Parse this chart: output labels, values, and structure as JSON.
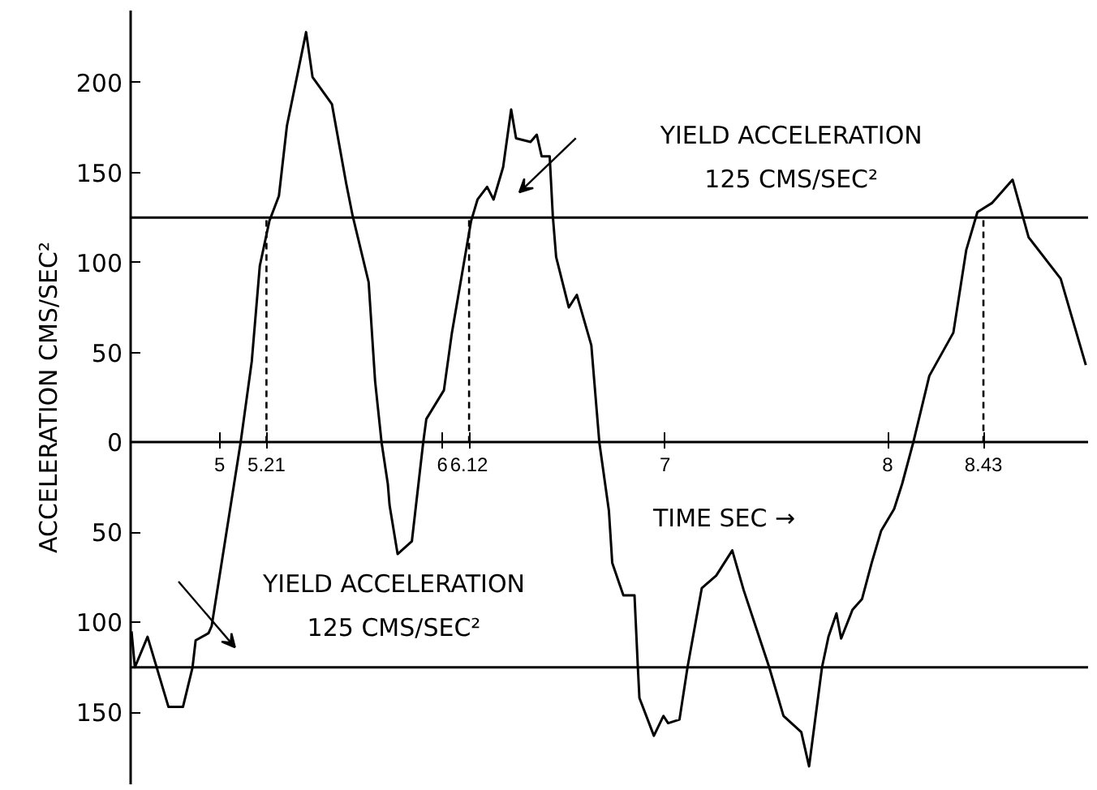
{
  "chart_data": {
    "type": "line",
    "xlabel": "TIME SEC →",
    "ylabel": "ACCELERATION CMS/SEC²",
    "xlim": [
      4.6,
      8.9
    ],
    "ylim": [
      -190,
      240
    ],
    "xticks": [
      5,
      5.21,
      6,
      6.12,
      7,
      8,
      8.43
    ],
    "yticks": [
      200,
      150,
      100,
      50,
      0,
      {
        "value": -50,
        "label": "50"
      },
      {
        "value": -100,
        "label": "100"
      },
      {
        "value": -150,
        "label": "150"
      }
    ],
    "marker": "none",
    "line_style": "solid",
    "x": [
      4.604,
      4.619,
      4.676,
      4.77,
      4.835,
      4.878,
      4.892,
      4.95,
      4.964,
      5.094,
      5.144,
      5.18,
      5.223,
      5.266,
      5.302,
      5.388,
      5.417,
      5.504,
      5.568,
      5.597,
      5.669,
      5.698,
      5.727,
      5.755,
      5.763,
      5.799,
      5.863,
      5.914,
      5.928,
      6.007,
      6.043,
      6.129,
      6.158,
      6.201,
      6.23,
      6.273,
      6.309,
      6.331,
      6.396,
      6.424,
      6.446,
      6.482,
      6.496,
      6.511,
      6.568,
      6.604,
      6.669,
      6.705,
      6.748,
      6.763,
      6.813,
      6.863,
      6.878,
      6.885,
      6.95,
      6.993,
      7.014,
      7.065,
      7.101,
      7.165,
      7.23,
      7.302,
      7.353,
      7.468,
      7.532,
      7.612,
      7.647,
      7.705,
      7.734,
      7.77,
      7.791,
      7.842,
      7.885,
      7.928,
      7.971,
      8.029,
      8.065,
      8.115,
      8.187,
      8.295,
      8.353,
      8.403,
      8.468,
      8.561,
      8.633,
      8.777,
      8.89
    ],
    "series": [
      {
        "color": "#000000",
        "values": [
          -105,
          -125,
          -108,
          -147,
          -147,
          -125,
          -110,
          -106,
          -102,
          0,
          45,
          98,
          123,
          137,
          176,
          228,
          203,
          188,
          144,
          126,
          89,
          34,
          0,
          -23,
          -35,
          -62,
          -55,
          0,
          13,
          29,
          61,
          123,
          135,
          142,
          135,
          153,
          185,
          169,
          167,
          171,
          159,
          159,
          126,
          103,
          75,
          82,
          54,
          0,
          -38,
          -67,
          -85,
          -85,
          -125,
          -142,
          -163,
          -152,
          -156,
          -154,
          -125,
          -81,
          -74,
          -60,
          -82,
          -125,
          -152,
          -161,
          -180,
          -125,
          -108,
          -95,
          -109,
          -93,
          -87,
          -67,
          -49,
          -37,
          -23,
          0,
          37,
          61,
          107,
          128,
          133,
          146,
          114,
          91,
          43
        ]
      }
    ],
    "ref_lines": [
      {
        "axis": "y",
        "value": 125,
        "color": "#000000",
        "line_style": "solid"
      },
      {
        "axis": "y",
        "value": -125,
        "color": "#000000",
        "line_style": "solid"
      },
      {
        "axis": "x",
        "value": 5.21,
        "color": "#000000",
        "line_style": "dashed"
      },
      {
        "axis": "x",
        "value": 6.12,
        "color": "#000000",
        "line_style": "dashed"
      },
      {
        "axis": "x",
        "value": 8.43,
        "color": "#000000",
        "line_style": "dashed"
      }
    ],
    "annotations": [
      "YIELD ACCELERATION\n125 CMS/SEC²",
      "YIELD ACCELERATION\n125 CMS/SEC²"
    ]
  }
}
